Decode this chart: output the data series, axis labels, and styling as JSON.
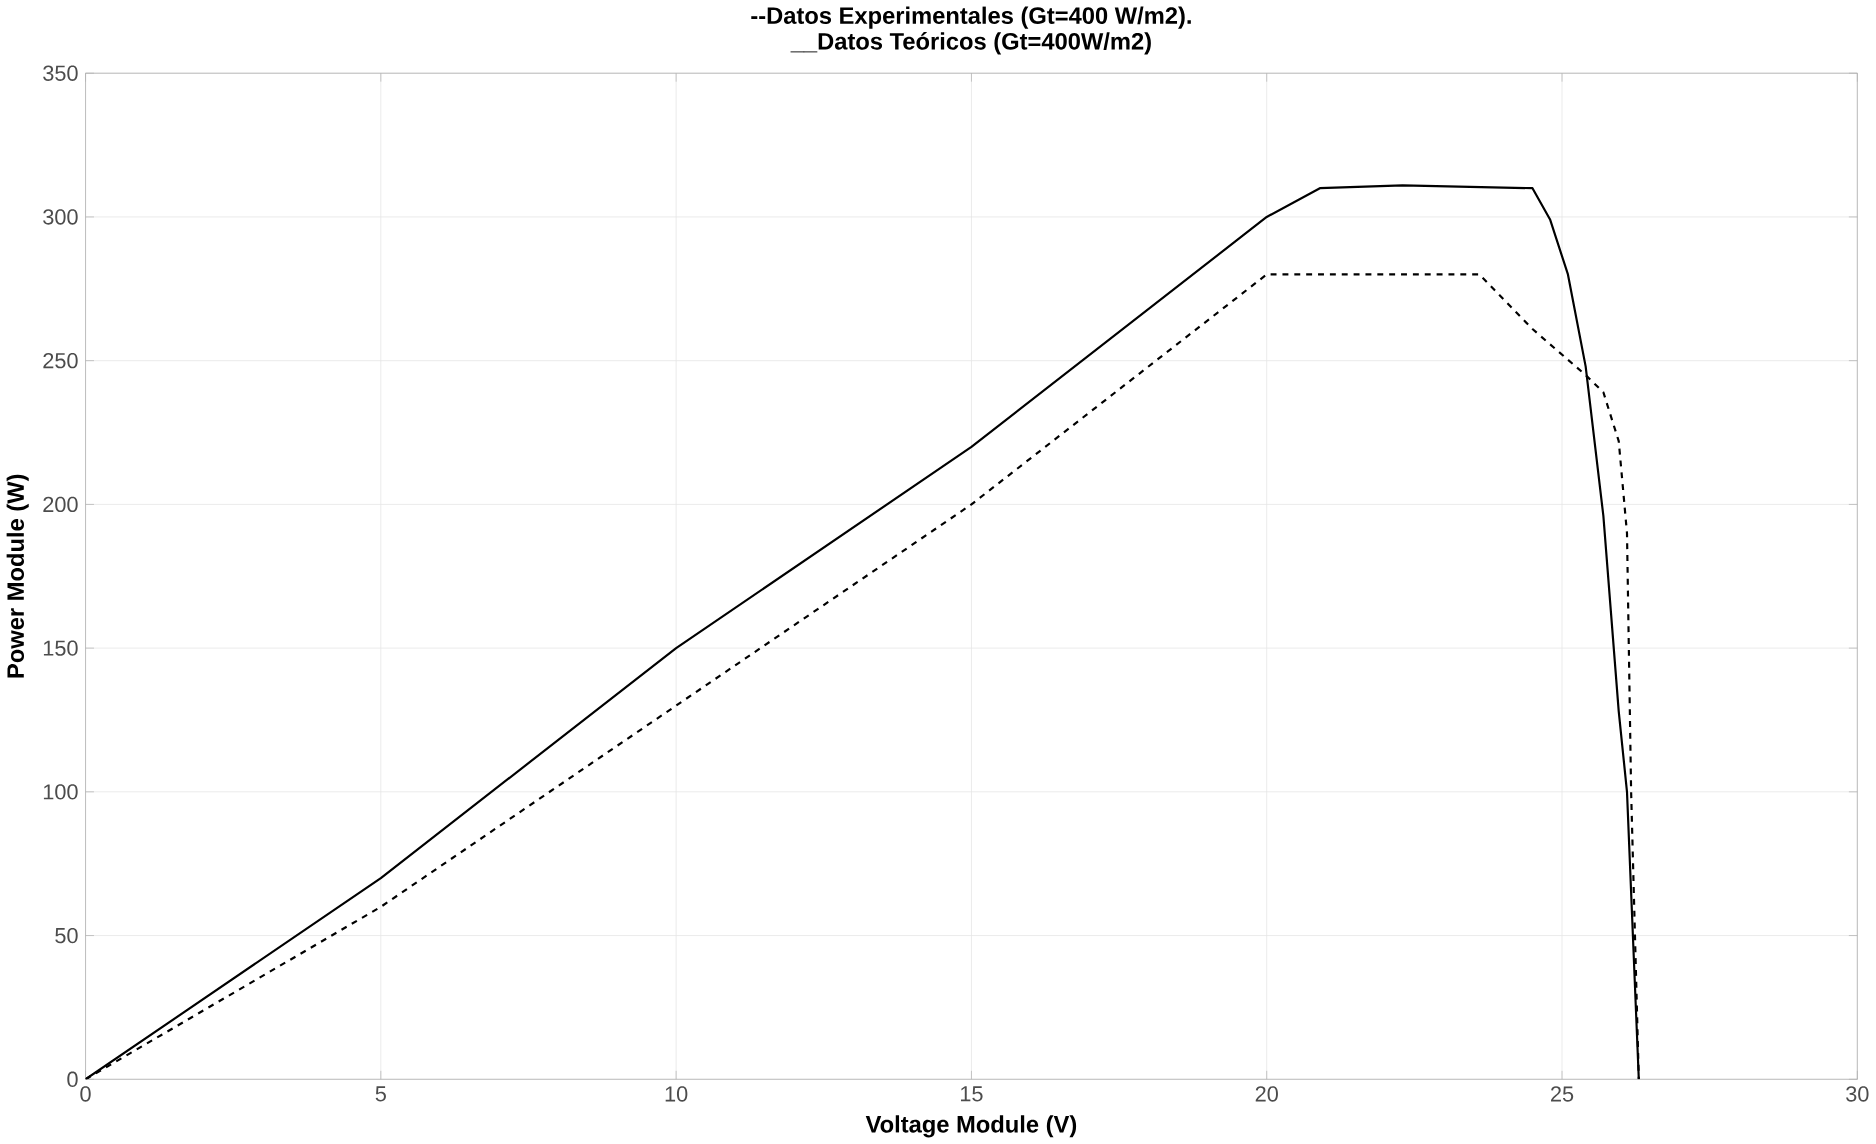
{
  "chart_data": {
    "type": "line",
    "title": "--Datos Experimentales (Gt=400 W/m2).",
    "subtitle": "__Datos Teóricos (Gt=400W/m2)",
    "xlabel": "Voltage Module (V)",
    "ylabel": "Power Module (W)",
    "xlim": [
      0,
      30
    ],
    "ylim": [
      0,
      350
    ],
    "xticks": [
      0,
      5,
      10,
      15,
      20,
      25,
      30
    ],
    "yticks": [
      0,
      50,
      100,
      150,
      200,
      250,
      300,
      350
    ],
    "grid": true,
    "series": [
      {
        "color": "#000000",
        "line_style": "solid",
        "x": [
          0,
          5,
          10,
          15,
          20,
          20.9,
          22.3,
          24.5,
          24.8,
          25.1,
          25.4,
          25.7,
          25.96,
          26.1,
          26.3
        ],
        "values": [
          0,
          70,
          150,
          220,
          300,
          310,
          311,
          310,
          299,
          280,
          248,
          196,
          128,
          100,
          0
        ]
      },
      {
        "color": "#000000",
        "line_style": "dashed",
        "x": [
          0,
          5,
          10,
          15,
          20,
          23.6,
          24.5,
          25.4,
          25.7,
          25.96,
          26.1,
          26.17,
          26.3
        ],
        "values": [
          0,
          60,
          130,
          200,
          280,
          280,
          261,
          245,
          239,
          222,
          190,
          100,
          0
        ]
      }
    ]
  }
}
